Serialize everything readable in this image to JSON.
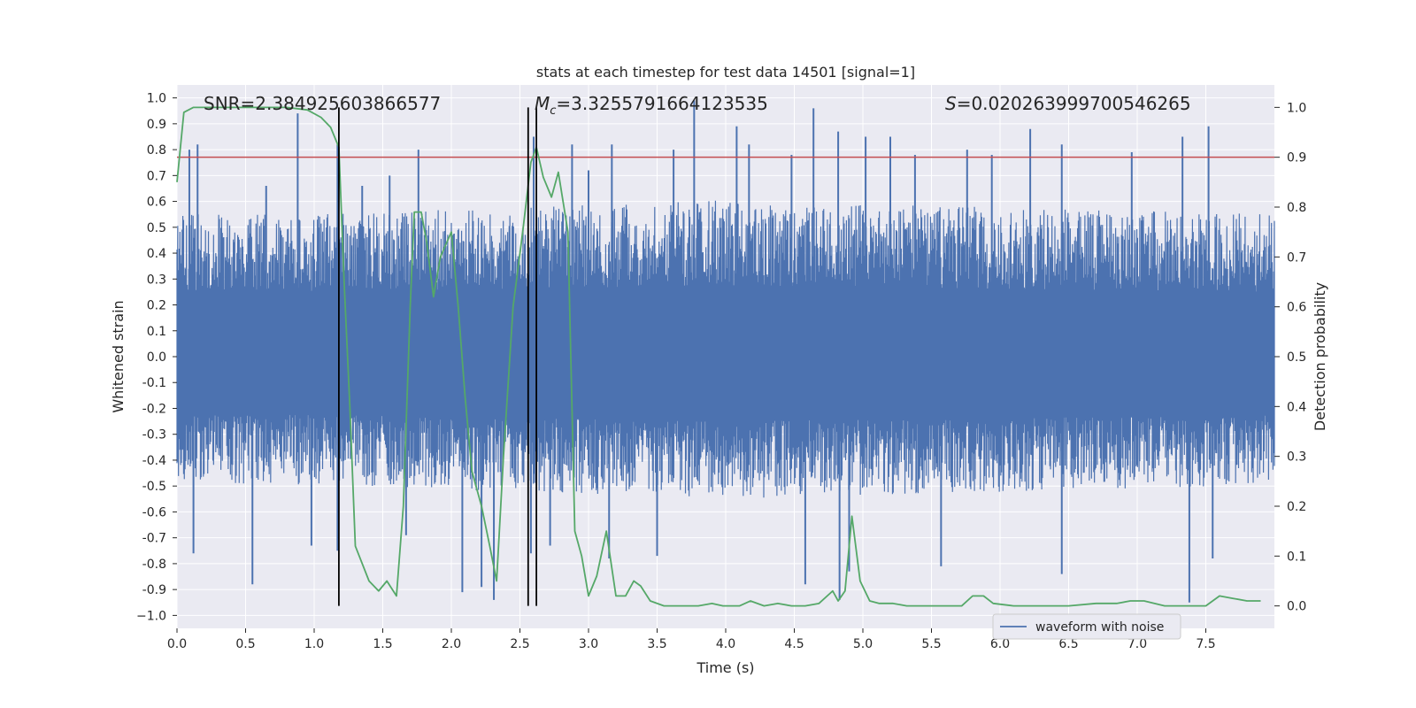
{
  "chart_data": {
    "type": "line",
    "title": "stats at each timestep for test data 14501 [signal=1]",
    "xlabel": "Time (s)",
    "ylabel": "Whitened strain",
    "y2label": "Detection probability",
    "xlim": [
      0.0,
      8.0
    ],
    "ylim": [
      -1.05,
      1.05
    ],
    "y2lim": [
      -0.045,
      1.045
    ],
    "x_ticks": [
      "0.0",
      "0.5",
      "1.0",
      "1.5",
      "2.0",
      "2.5",
      "3.0",
      "3.5",
      "4.0",
      "4.5",
      "5.0",
      "5.5",
      "6.0",
      "6.5",
      "7.0",
      "7.5"
    ],
    "x_tick_values": [
      0.0,
      0.5,
      1.0,
      1.5,
      2.0,
      2.5,
      3.0,
      3.5,
      4.0,
      4.5,
      5.0,
      5.5,
      6.0,
      6.5,
      7.0,
      7.5
    ],
    "y_ticks": [
      "1.0",
      "0.9",
      "0.8",
      "0.7",
      "0.6",
      "0.5",
      "0.4",
      "0.3",
      "0.2",
      "0.1",
      "0.0",
      "-0.1",
      "-0.2",
      "-0.3",
      "-0.4",
      "-0.5",
      "-0.6",
      "-0.7",
      "-0.8",
      "-0.9",
      "−1.0"
    ],
    "y_tick_values": [
      1.0,
      0.9,
      0.8,
      0.7,
      0.6,
      0.5,
      0.4,
      0.3,
      0.2,
      0.1,
      0.0,
      -0.1,
      -0.2,
      -0.3,
      -0.4,
      -0.5,
      -0.6,
      -0.7,
      -0.8,
      -0.9,
      -1.0
    ],
    "y2_ticks": [
      "1.0",
      "0.9",
      "0.8",
      "0.7",
      "0.6",
      "0.5",
      "0.4",
      "0.3",
      "0.2",
      "0.1",
      "0.0"
    ],
    "y2_tick_values": [
      1.0,
      0.9,
      0.8,
      0.7,
      0.6,
      0.5,
      0.4,
      0.3,
      0.2,
      0.1,
      0.0
    ],
    "grid": true,
    "legend": {
      "position": "lower-right",
      "entries": [
        "waveform with noise"
      ]
    },
    "stats": {
      "snr_text": "SNR=2.384925603866577",
      "mc_label": "M",
      "mc_sub": "c",
      "mc_value": "=3.3255791664123535",
      "s_label": "S",
      "s_value": "=0.020263999700546265"
    },
    "threshold": {
      "axis": "y2",
      "value": 0.9,
      "color": "#c44e52"
    },
    "vertical_lines": [
      1.18,
      2.56,
      2.62
    ],
    "vertical_line_range": [
      0.0,
      1.0
    ],
    "series": [
      {
        "name": "waveform with noise",
        "axis": "y1",
        "color": "#4c72b0",
        "kind": "noise",
        "envelope": [
          {
            "x": 0.0,
            "upper": 0.5,
            "lower": -0.45
          },
          {
            "x": 1.0,
            "upper": 0.5,
            "lower": -0.45
          },
          {
            "x": 4.0,
            "upper": 0.55,
            "lower": -0.5
          },
          {
            "x": 8.0,
            "upper": 0.5,
            "lower": -0.45
          }
        ],
        "spikes_upper": [
          [
            0.09,
            0.8
          ],
          [
            0.15,
            0.82
          ],
          [
            0.65,
            0.66
          ],
          [
            0.88,
            0.94
          ],
          [
            1.17,
            0.82
          ],
          [
            1.35,
            0.66
          ],
          [
            1.55,
            0.7
          ],
          [
            1.76,
            0.8
          ],
          [
            2.6,
            0.85
          ],
          [
            2.88,
            0.82
          ],
          [
            3.0,
            0.72
          ],
          [
            3.17,
            0.82
          ],
          [
            3.62,
            0.8
          ],
          [
            3.77,
            0.99
          ],
          [
            4.08,
            0.89
          ],
          [
            4.17,
            0.82
          ],
          [
            4.48,
            0.78
          ],
          [
            4.64,
            0.96
          ],
          [
            4.82,
            0.87
          ],
          [
            5.02,
            0.85
          ],
          [
            5.2,
            0.85
          ],
          [
            5.38,
            0.78
          ],
          [
            5.76,
            0.8
          ],
          [
            5.94,
            0.78
          ],
          [
            6.22,
            0.88
          ],
          [
            6.45,
            0.82
          ],
          [
            6.96,
            0.79
          ],
          [
            7.33,
            0.85
          ],
          [
            7.52,
            0.89
          ]
        ],
        "spikes_lower": [
          [
            0.12,
            -0.76
          ],
          [
            0.55,
            -0.88
          ],
          [
            0.98,
            -0.73
          ],
          [
            1.17,
            -0.75
          ],
          [
            1.67,
            -0.69
          ],
          [
            2.08,
            -0.91
          ],
          [
            2.22,
            -0.89
          ],
          [
            2.31,
            -0.94
          ],
          [
            2.58,
            -0.76
          ],
          [
            2.72,
            -0.73
          ],
          [
            3.15,
            -0.78
          ],
          [
            3.5,
            -0.77
          ],
          [
            4.58,
            -0.88
          ],
          [
            4.83,
            -0.94
          ],
          [
            4.9,
            -0.83
          ],
          [
            5.57,
            -0.81
          ],
          [
            6.45,
            -0.84
          ],
          [
            7.38,
            -0.95
          ],
          [
            7.55,
            -0.78
          ]
        ]
      },
      {
        "name": "",
        "axis": "y2",
        "color": "#55a868",
        "x": [
          0.0,
          0.05,
          0.12,
          0.2,
          0.4,
          0.6,
          0.8,
          0.95,
          1.05,
          1.12,
          1.18,
          1.22,
          1.26,
          1.3,
          1.4,
          1.47,
          1.53,
          1.6,
          1.65,
          1.7,
          1.73,
          1.78,
          1.82,
          1.87,
          1.92,
          2.0,
          2.05,
          2.1,
          2.15,
          2.22,
          2.28,
          2.33,
          2.38,
          2.45,
          2.52,
          2.58,
          2.62,
          2.67,
          2.73,
          2.78,
          2.85,
          2.9,
          2.95,
          3.0,
          3.06,
          3.13,
          3.2,
          3.27,
          3.33,
          3.38,
          3.45,
          3.55,
          3.65,
          3.7,
          3.8,
          3.9,
          3.98,
          4.1,
          4.18,
          4.28,
          4.38,
          4.48,
          4.58,
          4.68,
          4.78,
          4.82,
          4.87,
          4.92,
          4.98,
          5.05,
          5.12,
          5.22,
          5.32,
          5.42,
          5.52,
          5.62,
          5.72,
          5.8,
          5.88,
          5.95,
          6.1,
          6.3,
          6.5,
          6.7,
          6.85,
          6.95,
          7.05,
          7.2,
          7.35,
          7.5,
          7.6,
          7.7,
          7.8,
          7.9
        ],
        "values": [
          0.85,
          0.99,
          1.0,
          1.0,
          1.0,
          1.0,
          1.0,
          0.995,
          0.98,
          0.96,
          0.92,
          0.64,
          0.4,
          0.12,
          0.05,
          0.03,
          0.05,
          0.02,
          0.2,
          0.6,
          0.79,
          0.79,
          0.73,
          0.62,
          0.7,
          0.75,
          0.6,
          0.42,
          0.27,
          0.2,
          0.12,
          0.05,
          0.3,
          0.6,
          0.75,
          0.89,
          0.92,
          0.86,
          0.82,
          0.87,
          0.75,
          0.15,
          0.1,
          0.02,
          0.06,
          0.15,
          0.02,
          0.02,
          0.05,
          0.04,
          0.01,
          0.0,
          0.0,
          0.0,
          0.0,
          0.005,
          0.0,
          0.0,
          0.01,
          0.0,
          0.005,
          0.0,
          0.0,
          0.005,
          0.03,
          0.01,
          0.03,
          0.18,
          0.05,
          0.01,
          0.005,
          0.005,
          0.0,
          0.0,
          0.0,
          0.0,
          0.0,
          0.02,
          0.02,
          0.005,
          0.0,
          0.0,
          0.0,
          0.005,
          0.005,
          0.01,
          0.01,
          0.0,
          0.0,
          0.0,
          0.02,
          0.015,
          0.01,
          0.01
        ]
      }
    ]
  }
}
